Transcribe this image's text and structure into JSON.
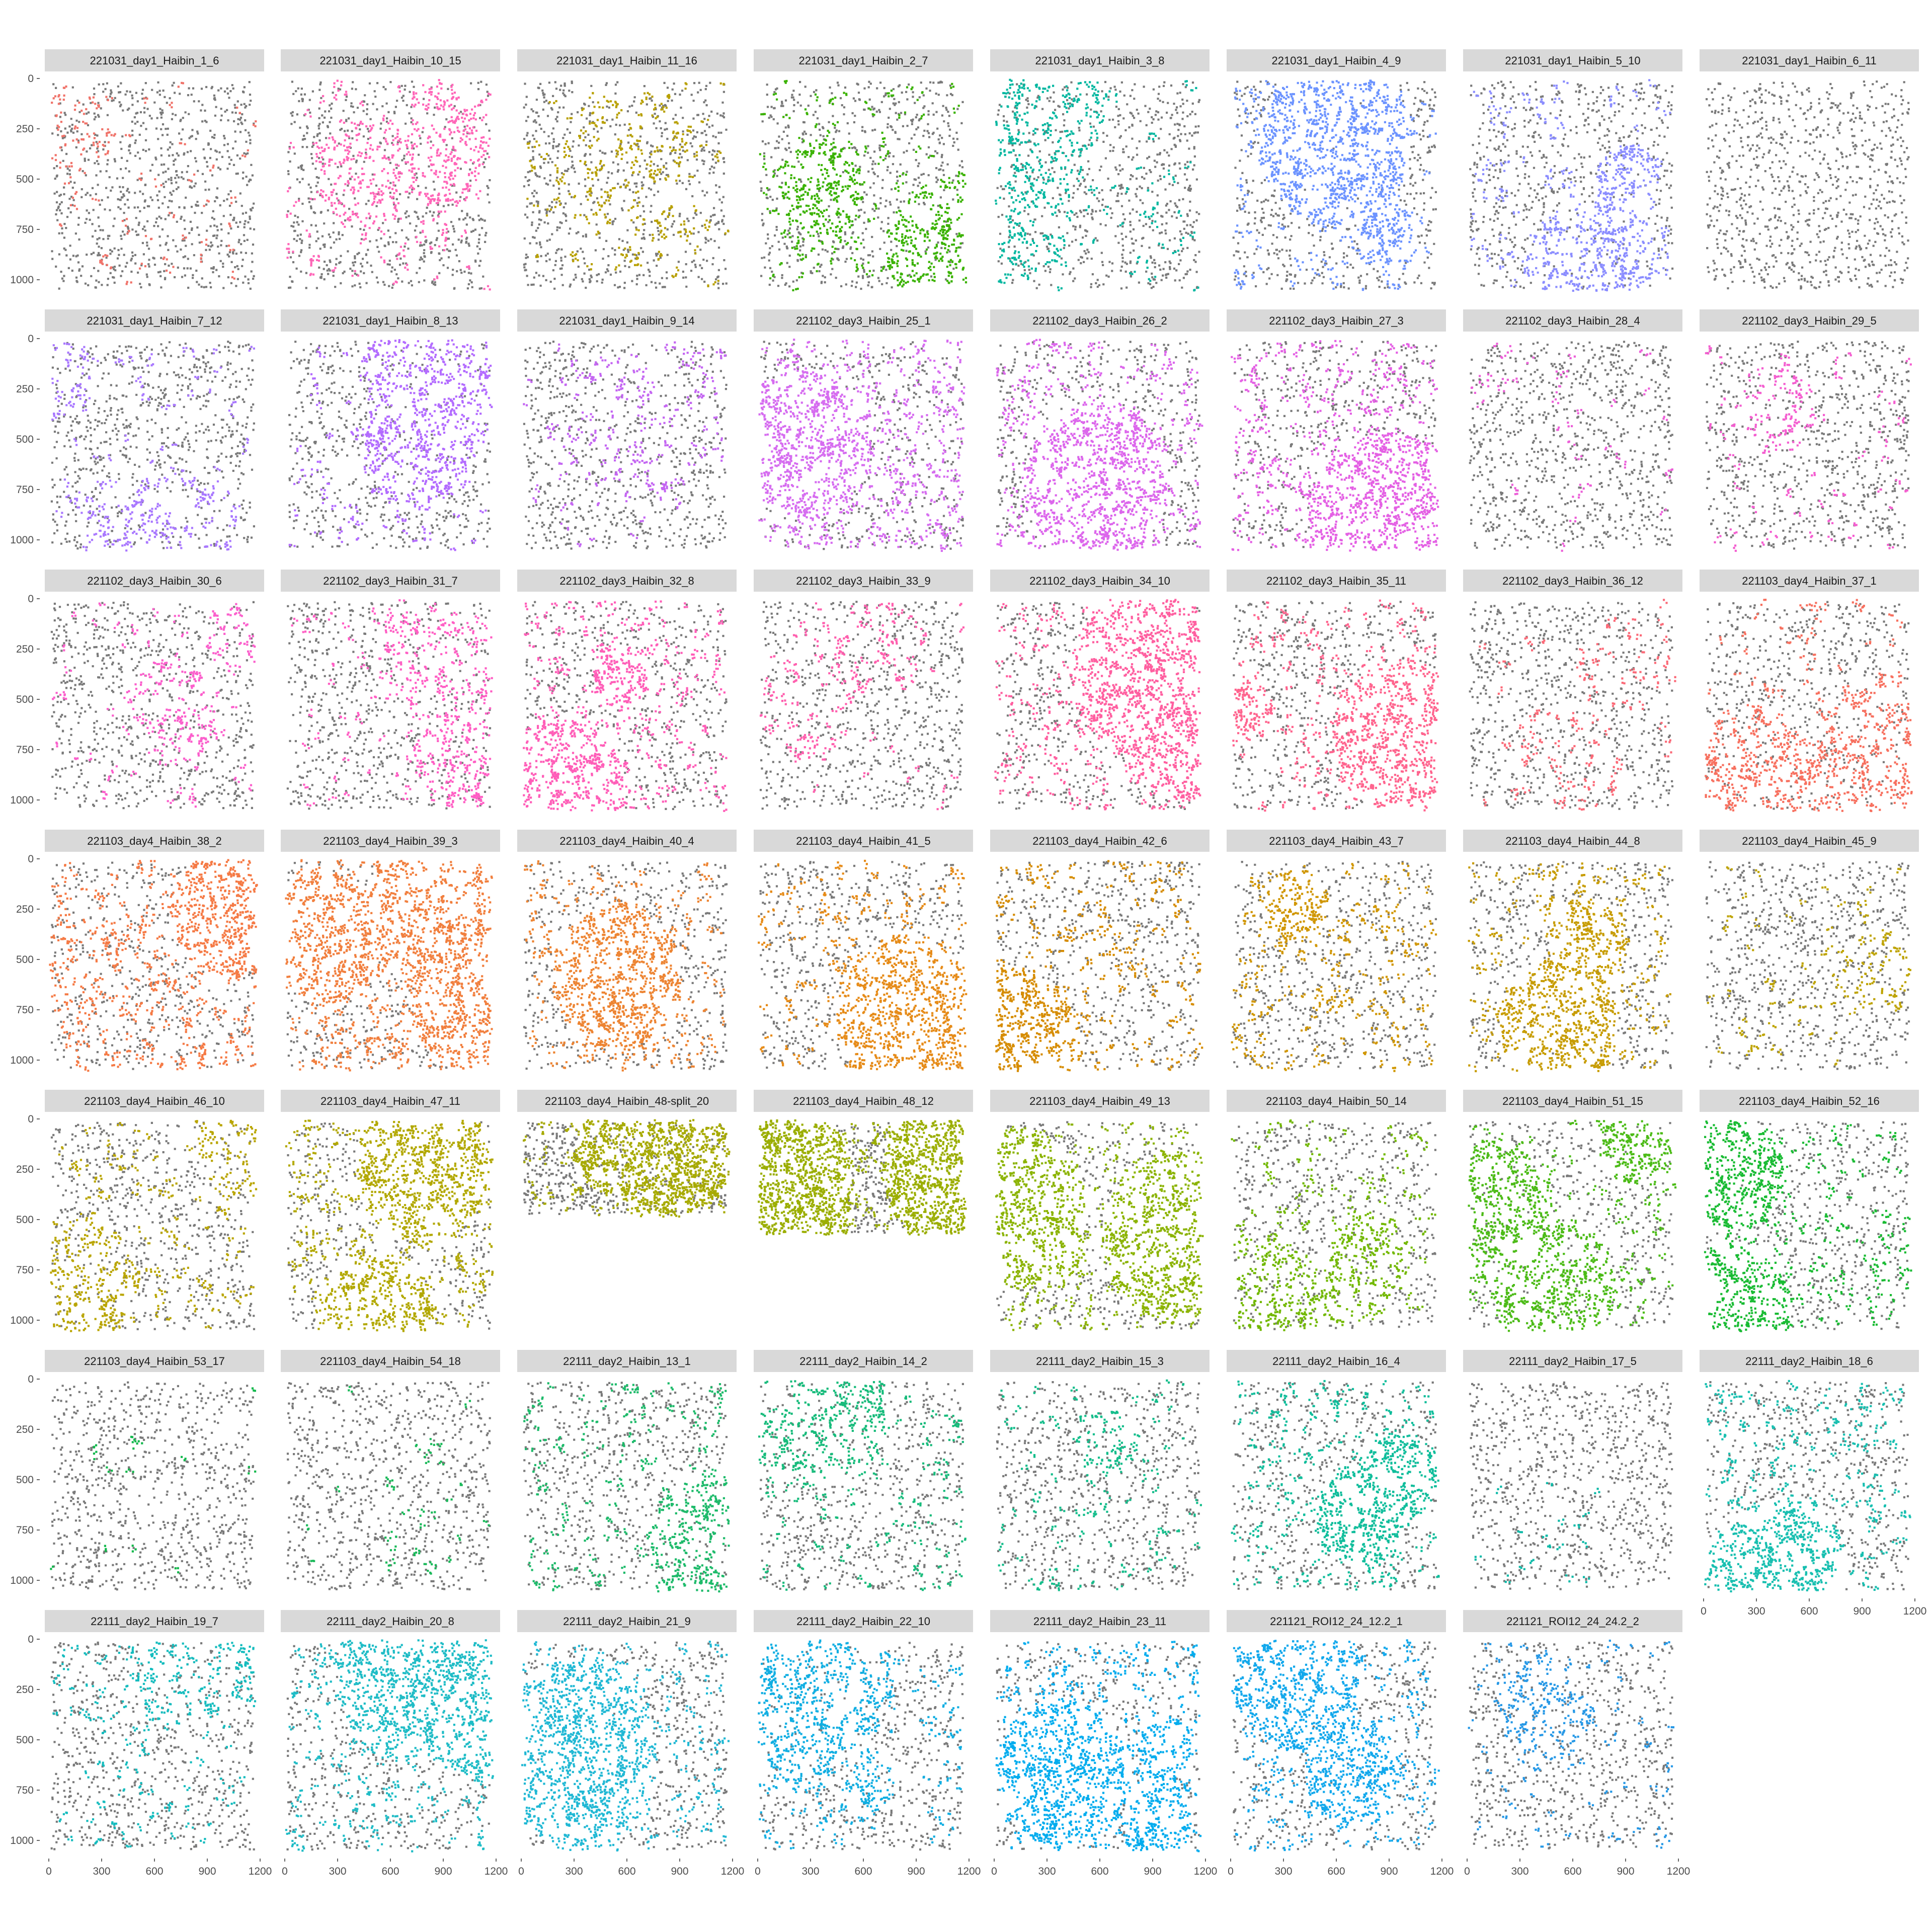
{
  "chart_data": {
    "type": "scatter",
    "layout": "faceted-grid",
    "x_ticks": [
      0,
      300,
      600,
      900,
      1200
    ],
    "y_ticks": [
      0,
      250,
      500,
      750,
      1000
    ],
    "x_range": [
      0,
      1200
    ],
    "y_range": [
      0,
      1050
    ],
    "y_reversed": true,
    "background_points_color": "#7a7a7a",
    "panels": [
      {
        "title": "221031_day1_Haibin_1_6",
        "color": "#f0736a",
        "coverage": 0.12
      },
      {
        "title": "221031_day1_Haibin_10_15",
        "color": "#ff66b8",
        "coverage": 0.28
      },
      {
        "title": "221031_day1_Haibin_11_16",
        "color": "#b8a000",
        "coverage": 0.14
      },
      {
        "title": "221031_day1_Haibin_2_7",
        "color": "#3ab200",
        "coverage": 0.36
      },
      {
        "title": "221031_day1_Haibin_3_8",
        "color": "#00b7a0",
        "coverage": 0.22
      },
      {
        "title": "221031_day1_Haibin_4_9",
        "color": "#6c93ff",
        "coverage": 0.45
      },
      {
        "title": "221031_day1_Haibin_5_10",
        "color": "#8b8dff",
        "coverage": 0.35
      },
      {
        "title": "221031_day1_Haibin_6_11",
        "color": "#7a7a7a",
        "coverage": 0.0
      },
      {
        "title": "221031_day1_Haibin_7_12",
        "color": "#a978ff",
        "coverage": 0.2
      },
      {
        "title": "221031_day1_Haibin_8_13",
        "color": "#b36cff",
        "coverage": 0.35
      },
      {
        "title": "221031_day1_Haibin_9_14",
        "color": "#c466f2",
        "coverage": 0.12
      },
      {
        "title": "221102_day3_Haibin_25_1",
        "color": "#d66cf0",
        "coverage": 0.92
      },
      {
        "title": "221102_day3_Haibin_26_2",
        "color": "#dc66ec",
        "coverage": 0.62
      },
      {
        "title": "221102_day3_Haibin_27_3",
        "color": "#e460e4",
        "coverage": 0.75
      },
      {
        "title": "221102_day3_Haibin_28_4",
        "color": "#ec5fd8",
        "coverage": 0.08
      },
      {
        "title": "221102_day3_Haibin_29_5",
        "color": "#f45ed0",
        "coverage": 0.22
      },
      {
        "title": "221102_day3_Haibin_30_6",
        "color": "#fb5fcc",
        "coverage": 0.2
      },
      {
        "title": "221102_day3_Haibin_31_7",
        "color": "#ff5ec4",
        "coverage": 0.22
      },
      {
        "title": "221102_day3_Haibin_32_8",
        "color": "#ff5eb8",
        "coverage": 0.55
      },
      {
        "title": "221102_day3_Haibin_33_9",
        "color": "#ff5fae",
        "coverage": 0.14
      },
      {
        "title": "221102_day3_Haibin_34_10",
        "color": "#ff5fa0",
        "coverage": 0.55
      },
      {
        "title": "221102_day3_Haibin_35_11",
        "color": "#ff648e",
        "coverage": 0.45
      },
      {
        "title": "221102_day3_Haibin_36_12",
        "color": "#fb6a78",
        "coverage": 0.1
      },
      {
        "title": "221103_day4_Haibin_37_1",
        "color": "#f7705f",
        "coverage": 0.3
      },
      {
        "title": "221103_day4_Haibin_38_2",
        "color": "#f57a45",
        "coverage": 0.95
      },
      {
        "title": "221103_day4_Haibin_39_3",
        "color": "#f17f3e",
        "coverage": 0.75
      },
      {
        "title": "221103_day4_Haibin_40_4",
        "color": "#ed8432",
        "coverage": 0.5
      },
      {
        "title": "221103_day4_Haibin_41_5",
        "color": "#e68b18",
        "coverage": 0.5
      },
      {
        "title": "221103_day4_Haibin_42_6",
        "color": "#d68c00",
        "coverage": 0.6
      },
      {
        "title": "221103_day4_Haibin_43_7",
        "color": "#d09600",
        "coverage": 0.6
      },
      {
        "title": "221103_day4_Haibin_44_8",
        "color": "#c79c00",
        "coverage": 0.45
      },
      {
        "title": "221103_day4_Haibin_45_9",
        "color": "#bea300",
        "coverage": 0.15
      },
      {
        "title": "221103_day4_Haibin_46_10",
        "color": "#b9a500",
        "coverage": 0.3
      },
      {
        "title": "221103_day4_Haibin_47_11",
        "color": "#b2a800",
        "coverage": 0.7
      },
      {
        "title": "221103_day4_Haibin_48-split_20",
        "color": "#a7aa00",
        "coverage": 0.35,
        "y_max": 480
      },
      {
        "title": "221103_day4_Haibin_48_12",
        "color": "#9bae00",
        "coverage": 0.55,
        "y_max": 570
      },
      {
        "title": "221103_day4_Haibin_49_13",
        "color": "#8bb300",
        "coverage": 0.55
      },
      {
        "title": "221103_day4_Haibin_50_14",
        "color": "#72b800",
        "coverage": 0.3
      },
      {
        "title": "221103_day4_Haibin_51_15",
        "color": "#4cbb17",
        "coverage": 0.4
      },
      {
        "title": "221103_day4_Haibin_52_16",
        "color": "#19bb33",
        "coverage": 0.45
      },
      {
        "title": "221103_day4_Haibin_53_17",
        "color": "#12b84c",
        "coverage": 0.02
      },
      {
        "title": "221103_day4_Haibin_54_18",
        "color": "#1bb95a",
        "coverage": 0.04
      },
      {
        "title": "22111_day2_Haibin_13_1",
        "color": "#1dba6a",
        "coverage": 0.35
      },
      {
        "title": "22111_day2_Haibin_14_2",
        "color": "#17bb7b",
        "coverage": 0.3
      },
      {
        "title": "22111_day2_Haibin_15_3",
        "color": "#14bd8b",
        "coverage": 0.3
      },
      {
        "title": "22111_day2_Haibin_16_4",
        "color": "#0fbd9b",
        "coverage": 0.5
      },
      {
        "title": "22111_day2_Haibin_17_5",
        "color": "#0dbaa8",
        "coverage": 0.02
      },
      {
        "title": "22111_day2_Haibin_18_6",
        "color": "#18bfb0",
        "coverage": 0.5
      },
      {
        "title": "22111_day2_Haibin_19_7",
        "color": "#15bcbe",
        "coverage": 0.25
      },
      {
        "title": "22111_day2_Haibin_20_8",
        "color": "#1fbcc6",
        "coverage": 0.6
      },
      {
        "title": "22111_day2_Haibin_21_9",
        "color": "#20b8d4",
        "coverage": 0.45
      },
      {
        "title": "22111_day2_Haibin_22_10",
        "color": "#10aee2",
        "coverage": 0.35
      },
      {
        "title": "22111_day2_Haibin_23_11",
        "color": "#00acee",
        "coverage": 0.75
      },
      {
        "title": "221121_ROI12_24_12.2_1",
        "color": "#12a8ec",
        "coverage": 0.45
      },
      {
        "title": "221121_ROI12_24_24.2_2",
        "color": "#2698e6",
        "coverage": 0.25
      }
    ]
  }
}
